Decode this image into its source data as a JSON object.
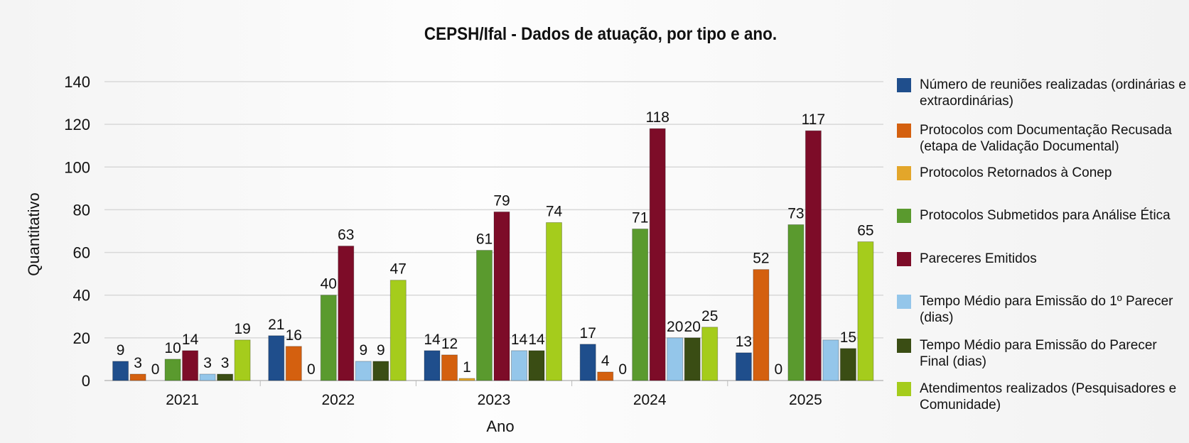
{
  "chart_data": {
    "type": "bar",
    "title": "CEPSH/Ifal - Dados de atuação, por tipo e ano.",
    "xlabel": "Ano",
    "ylabel": "Quantitativo",
    "ylim": [
      0,
      140
    ],
    "yticks": [
      0,
      20,
      40,
      60,
      80,
      100,
      120,
      140
    ],
    "grid": true,
    "legend_position": "right",
    "categories": [
      "2021",
      "2022",
      "2023",
      "2024",
      "2025"
    ],
    "series": [
      {
        "name": "Número de reuniões realizadas (ordinárias e extraordinárias)",
        "color": "#1f4e8c",
        "values": [
          9,
          21,
          14,
          17,
          13
        ],
        "labels": [
          "9",
          "21",
          "14",
          "17",
          "13"
        ]
      },
      {
        "name": "Protocolos com Documentação Recusada (etapa de Validação Documental)",
        "color": "#d4600f",
        "values": [
          3,
          16,
          12,
          4,
          52
        ],
        "labels": [
          "3",
          "16",
          "12",
          "4",
          "52"
        ]
      },
      {
        "name": "Protocolos Retornados à Conep",
        "color": "#e3a62a",
        "values": [
          0,
          0,
          1,
          0,
          0
        ],
        "labels": [
          "0",
          "0",
          "1",
          "0",
          "0"
        ]
      },
      {
        "name": "Protocolos Submetidos para Análise Ética",
        "color": "#5a9a2e",
        "values": [
          10,
          40,
          61,
          71,
          73
        ],
        "labels": [
          "10",
          "40",
          "61",
          "71",
          "73"
        ]
      },
      {
        "name": "Pareceres Emitidos",
        "color": "#7d0c28",
        "values": [
          14,
          63,
          79,
          118,
          117
        ],
        "labels": [
          "14",
          "63",
          "79",
          "118",
          "117"
        ]
      },
      {
        "name": "Tempo Médio para Emissão do 1º Parecer (dias)",
        "color": "#94c6ea",
        "values": [
          3,
          9,
          14,
          20,
          19
        ],
        "labels": [
          "3",
          "9",
          "14",
          "20",
          ""
        ]
      },
      {
        "name": "Tempo Médio para Emissão do Parecer Final (dias)",
        "color": "#3a4d14",
        "values": [
          3,
          9,
          14,
          20,
          15
        ],
        "labels": [
          "3",
          "9",
          "14",
          "20",
          "15"
        ]
      },
      {
        "name": "Atendimentos realizados (Pesquisadores e Comunidade)",
        "color": "#a5cc1c",
        "values": [
          19,
          47,
          74,
          25,
          65
        ],
        "labels": [
          "19",
          "47",
          "74",
          "25",
          "65"
        ]
      }
    ]
  }
}
